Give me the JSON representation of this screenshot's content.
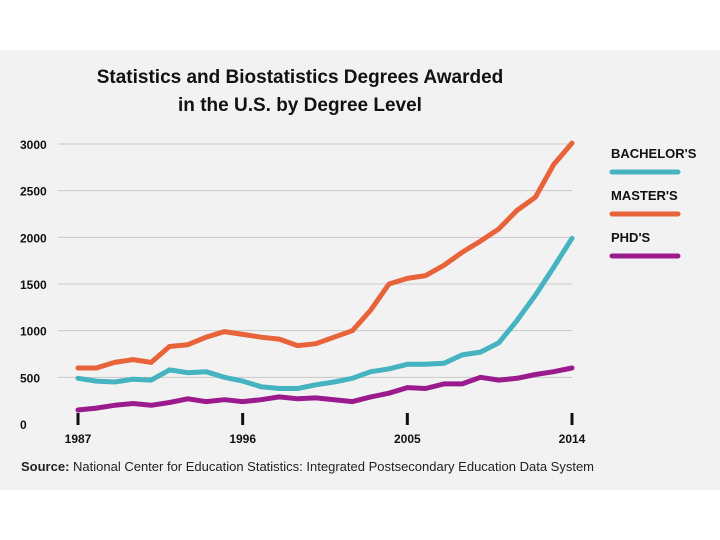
{
  "chart_data": {
    "type": "line",
    "title_line1": "Statistics and Biostatistics Degrees Awarded",
    "title_line2": "in the U.S. by Degree Level",
    "xlabel": "",
    "ylabel": "",
    "x": [
      1987,
      1988,
      1989,
      1990,
      1991,
      1992,
      1993,
      1994,
      1995,
      1996,
      1997,
      1998,
      1999,
      2000,
      2001,
      2002,
      2003,
      2004,
      2005,
      2006,
      2007,
      2008,
      2009,
      2010,
      2011,
      2012,
      2013,
      2014
    ],
    "x_ticks": [
      "1987",
      "1996",
      "2005",
      "2014"
    ],
    "y_ticks": [
      "0",
      "500",
      "1000",
      "1500",
      "2000",
      "2500",
      "3000"
    ],
    "ylim": [
      0,
      3000
    ],
    "grid": true,
    "legend_position": "right",
    "series": [
      {
        "name": "BACHELOR'S",
        "color": "#45b3c0",
        "values": [
          490,
          460,
          450,
          480,
          470,
          580,
          550,
          560,
          500,
          460,
          400,
          380,
          380,
          420,
          450,
          490,
          560,
          590,
          640,
          640,
          650,
          740,
          770,
          870,
          1110,
          1380,
          1680,
          1990
        ]
      },
      {
        "name": "MASTER'S",
        "color": "#e8623a",
        "values": [
          600,
          600,
          660,
          690,
          660,
          830,
          850,
          930,
          990,
          960,
          930,
          910,
          840,
          860,
          930,
          1000,
          1220,
          1500,
          1560,
          1590,
          1700,
          1840,
          1960,
          2090,
          2290,
          2430,
          2780,
          3010
        ]
      },
      {
        "name": "PHD'S",
        "color": "#9b1b8f",
        "values": [
          150,
          170,
          200,
          220,
          200,
          230,
          270,
          240,
          260,
          240,
          260,
          290,
          270,
          280,
          260,
          240,
          290,
          330,
          390,
          380,
          430,
          430,
          500,
          470,
          490,
          530,
          560,
          600
        ]
      }
    ]
  },
  "source": {
    "label": "Source:",
    "text": " National Center for Education Statistics: Integrated Postsecondary Education Data System"
  }
}
